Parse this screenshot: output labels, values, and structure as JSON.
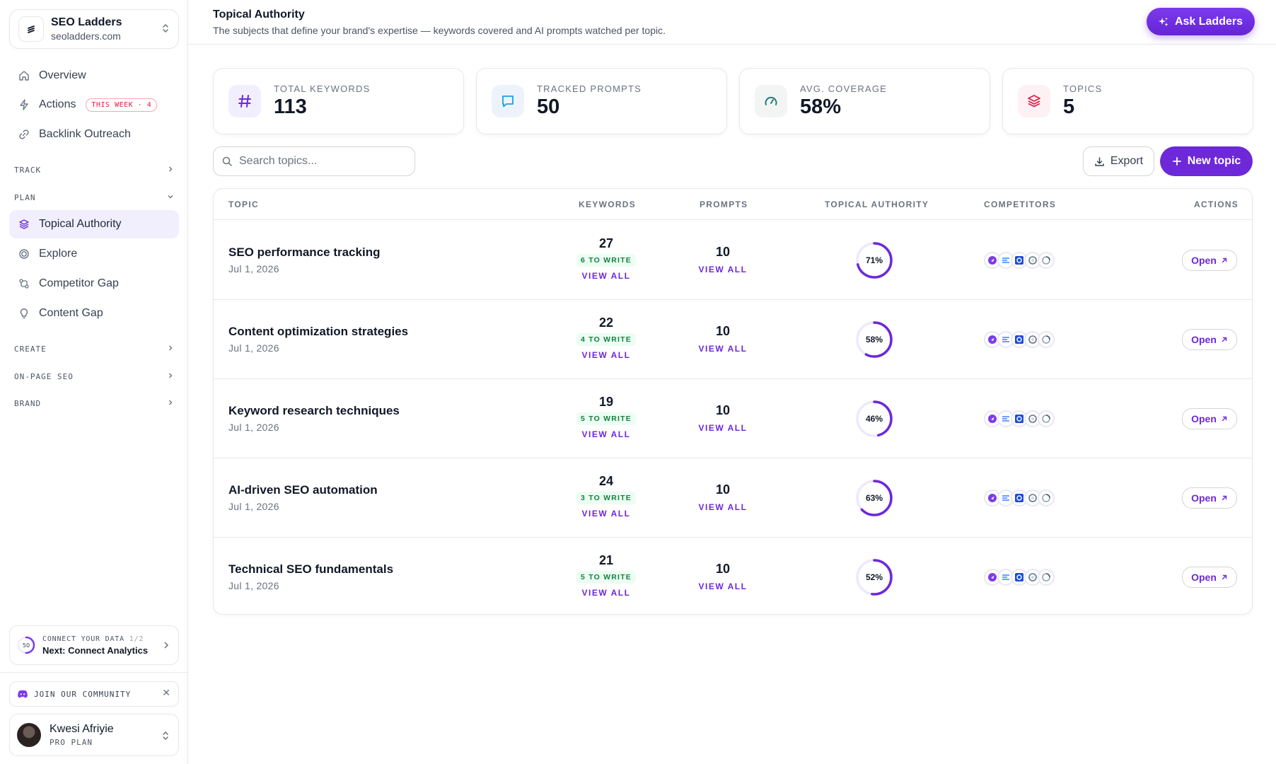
{
  "workspace": {
    "name": "SEO Ladders",
    "domain": "seoladders.com"
  },
  "nav": {
    "overview": "Overview",
    "actions": "Actions",
    "actions_badge": "THIS WEEK · 4",
    "backlink": "Backlink Outreach",
    "track": "TRACK",
    "plan": "PLAN",
    "topical": "Topical Authority",
    "explore": "Explore",
    "competitor_gap": "Competitor Gap",
    "content_gap": "Content Gap",
    "create": "CREATE",
    "onpage": "ON-PAGE SEO",
    "brand": "BRAND"
  },
  "connect": {
    "progress": "50",
    "progress_value": 0.5,
    "line1": "CONNECT YOUR DATA",
    "count": "1/2",
    "line2": "Next: Connect Analytics"
  },
  "community": {
    "label": "JOIN OUR COMMUNITY"
  },
  "user": {
    "name": "Kwesi Afriyie",
    "plan": "PRO PLAN"
  },
  "header": {
    "title": "Topical Authority",
    "subtitle": "The subjects that define your brand's expertise — keywords covered and AI prompts watched per topic.",
    "ask_label": "Ask Ladders"
  },
  "stats": [
    {
      "label": "TOTAL KEYWORDS",
      "value": "113",
      "icon": "hash-icon"
    },
    {
      "label": "TRACKED PROMPTS",
      "value": "50",
      "icon": "chat-icon"
    },
    {
      "label": "AVG. COVERAGE",
      "value": "58%",
      "icon": "gauge-icon"
    },
    {
      "label": "TOPICS",
      "value": "5",
      "icon": "layers-icon"
    }
  ],
  "toolbar": {
    "search_placeholder": "Search topics...",
    "export_label": "Export",
    "new_label": "New topic"
  },
  "table": {
    "columns": {
      "topic": "TOPIC",
      "keywords": "KEYWORDS",
      "prompts": "PROMPTS",
      "authority": "TOPICAL AUTHORITY",
      "competitors": "COMPETITORS",
      "actions": "ACTIONS"
    },
    "view_all": "VIEW ALL",
    "open_label": "Open",
    "rows": [
      {
        "name": "SEO performance tracking",
        "date": "Jul 1, 2026",
        "keywords": "27",
        "to_write": "6 TO WRITE",
        "prompts": "10",
        "authority": "71%",
        "authority_value": 0.71
      },
      {
        "name": "Content optimization strategies",
        "date": "Jul 1, 2026",
        "keywords": "22",
        "to_write": "4 TO WRITE",
        "prompts": "10",
        "authority": "58%",
        "authority_value": 0.58
      },
      {
        "name": "Keyword research techniques",
        "date": "Jul 1, 2026",
        "keywords": "19",
        "to_write": "5 TO WRITE",
        "prompts": "10",
        "authority": "46%",
        "authority_value": 0.46
      },
      {
        "name": "AI-driven SEO automation",
        "date": "Jul 1, 2026",
        "keywords": "24",
        "to_write": "3 TO WRITE",
        "prompts": "10",
        "authority": "63%",
        "authority_value": 0.63
      },
      {
        "name": "Technical SEO fundamentals",
        "date": "Jul 1, 2026",
        "keywords": "21",
        "to_write": "5 TO WRITE",
        "prompts": "10",
        "authority": "52%",
        "authority_value": 0.52
      }
    ]
  },
  "colors": {
    "accent": "#6d28d9",
    "success": "#15803d",
    "badge_red": "#e11d48"
  }
}
